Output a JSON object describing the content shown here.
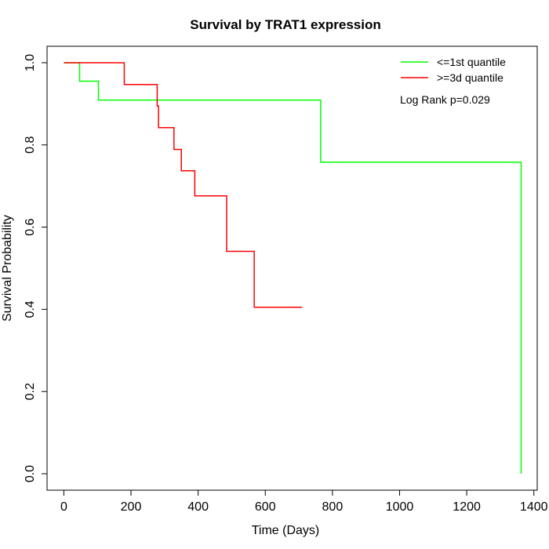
{
  "chart_data": {
    "type": "line",
    "title": "Survival by TRAT1 expression",
    "xlabel": "Time (Days)",
    "ylabel": "Survival Probability",
    "xlim": [
      -50,
      1410
    ],
    "ylim": [
      -0.04,
      1.04
    ],
    "x_ticks": [
      0,
      200,
      400,
      600,
      800,
      1000,
      1200,
      1400
    ],
    "y_ticks": [
      0.0,
      0.2,
      0.4,
      0.6,
      0.8,
      1.0
    ],
    "x_tick_labels": [
      "0",
      "200",
      "400",
      "600",
      "800",
      "1000",
      "1200",
      "1400"
    ],
    "y_tick_labels": [
      "0.0",
      "0.2",
      "0.4",
      "0.6",
      "0.8",
      "1.0"
    ],
    "grid": false,
    "legend_position": "top-right",
    "annotation": "Log Rank p=0.029",
    "series": [
      {
        "name": "<=1st quantile",
        "color": "#00ff00",
        "x": [
          0,
          47,
          103,
          765,
          1362,
          1362
        ],
        "y": [
          1.0,
          0.955,
          0.909,
          0.758,
          0.758,
          0.0
        ]
      },
      {
        "name": ">=3d quantile",
        "color": "#ff0000",
        "x": [
          0,
          180,
          278,
          282,
          328,
          350,
          390,
          485,
          567,
          710
        ],
        "y": [
          1.0,
          0.947,
          0.895,
          0.842,
          0.789,
          0.737,
          0.676,
          0.541,
          0.405,
          0.405
        ]
      }
    ]
  }
}
